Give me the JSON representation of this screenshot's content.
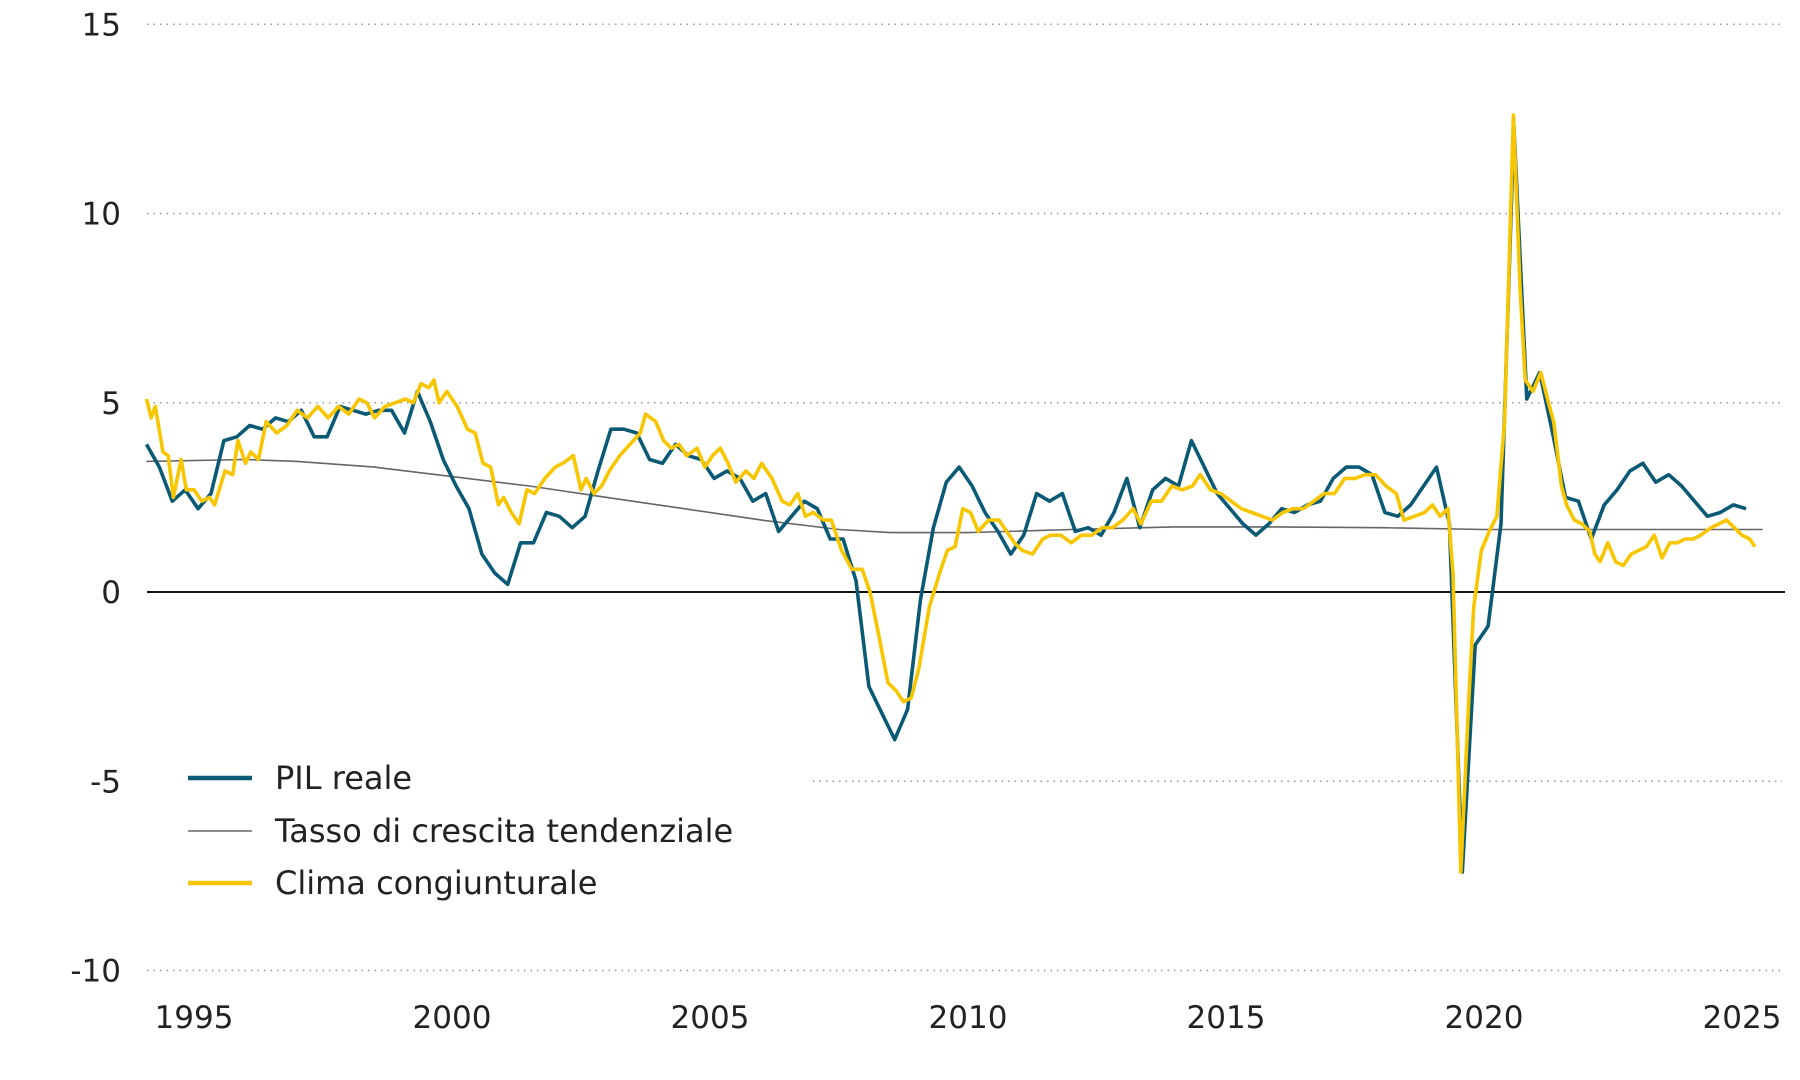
{
  "chart_data": {
    "type": "line",
    "title": "",
    "xlabel": "",
    "ylabel": "",
    "xlim": [
      1994.08,
      2025.6
    ],
    "ylim": [
      -10,
      15
    ],
    "y_ticks": [
      15,
      10,
      5,
      0,
      -5,
      -10
    ],
    "y_tick_labels": [
      "15",
      "10",
      "5",
      "0",
      "-5",
      "-10"
    ],
    "x_ticks": [
      1995,
      2000,
      2005,
      2010,
      2015,
      2020,
      2025
    ],
    "x_tick_labels": [
      "1995",
      "2000",
      "2005",
      "2010",
      "2015",
      "2020",
      "2025"
    ],
    "grid": "horizontal dotted",
    "legend_placement": "bottom-left",
    "series": [
      {
        "name": "PIL reale",
        "color": "#0b5a75",
        "x_start": 1994.08,
        "x_step": 0.25,
        "values": [
          3.9,
          3.3,
          2.4,
          2.7,
          2.2,
          2.6,
          4.0,
          4.1,
          4.4,
          4.3,
          4.6,
          4.5,
          4.8,
          4.1,
          4.1,
          4.9,
          4.8,
          4.7,
          4.8,
          4.8,
          4.2,
          5.3,
          4.5,
          3.5,
          2.8,
          2.2,
          1.0,
          0.5,
          0.2,
          1.3,
          1.3,
          2.1,
          2.0,
          1.7,
          2.0,
          3.2,
          4.3,
          4.3,
          4.2,
          3.5,
          3.4,
          3.9,
          3.6,
          3.5,
          3.0,
          3.2,
          3.0,
          2.4,
          2.6,
          1.6,
          2.0,
          2.4,
          2.2,
          1.4,
          1.4,
          0.3,
          -2.5,
          -3.2,
          -3.9,
          -3.1,
          -0.2,
          1.7,
          2.9,
          3.3,
          2.8,
          2.1,
          1.6,
          1.0,
          1.5,
          2.6,
          2.4,
          2.6,
          1.6,
          1.7,
          1.5,
          2.1,
          3.0,
          1.7,
          2.7,
          3.0,
          2.8,
          4.0,
          3.3,
          2.6,
          2.2,
          1.8,
          1.5,
          1.8,
          2.2,
          2.1,
          2.3,
          2.4,
          3.0,
          3.3,
          3.3,
          3.1,
          2.1,
          2.0,
          2.3,
          2.8,
          3.3,
          1.8,
          -7.4,
          -1.4,
          -0.9,
          1.8,
          12.3,
          5.1,
          5.8,
          4.2,
          2.5,
          2.4,
          1.4,
          2.3,
          2.7,
          3.2,
          3.4,
          2.9,
          3.1,
          2.8,
          2.4,
          2.0,
          2.1,
          2.3,
          2.2
        ]
      },
      {
        "name": "Tasso di crescita tendenziale",
        "color": "#666666",
        "x": [
          1994.08,
          1996,
          1997,
          1998.5,
          2000,
          2001.5,
          2003,
          2004.5,
          2006,
          2007.5,
          2008.5,
          2010,
          2012,
          2014,
          2016,
          2018,
          2020,
          2025.4
        ],
        "values": [
          3.45,
          3.5,
          3.45,
          3.3,
          3.05,
          2.8,
          2.5,
          2.2,
          1.9,
          1.65,
          1.57,
          1.57,
          1.65,
          1.72,
          1.72,
          1.7,
          1.65,
          1.65
        ]
      },
      {
        "name": "Clima congiunturale",
        "color": "#f7c600",
        "x": [
          1994.08,
          1994.17,
          1994.25,
          1994.4,
          1994.5,
          1994.6,
          1994.75,
          1994.85,
          1995.0,
          1995.15,
          1995.3,
          1995.4,
          1995.6,
          1995.75,
          1995.85,
          1996.0,
          1996.1,
          1996.25,
          1996.4,
          1996.6,
          1996.8,
          1997.0,
          1997.2,
          1997.4,
          1997.6,
          1997.8,
          1998.0,
          1998.2,
          1998.35,
          1998.5,
          1998.7,
          1998.9,
          1999.1,
          1999.25,
          1999.4,
          1999.55,
          1999.65,
          1999.75,
          1999.9,
          2000.1,
          2000.3,
          2000.45,
          2000.6,
          2000.75,
          2000.9,
          2001.0,
          2001.15,
          2001.3,
          2001.45,
          2001.6,
          2001.8,
          2002.0,
          2002.15,
          2002.35,
          2002.5,
          2002.6,
          2002.75,
          2002.9,
          2003.05,
          2003.25,
          2003.45,
          2003.65,
          2003.75,
          2003.95,
          2004.1,
          2004.25,
          2004.4,
          2004.55,
          2004.75,
          2004.9,
          2005.05,
          2005.2,
          2005.35,
          2005.5,
          2005.7,
          2005.85,
          2006.0,
          2006.2,
          2006.4,
          2006.55,
          2006.7,
          2006.85,
          2007.0,
          2007.2,
          2007.35,
          2007.55,
          2007.75,
          2007.95,
          2008.1,
          2008.25,
          2008.45,
          2008.6,
          2008.75,
          2008.9,
          2009.05,
          2009.25,
          2009.45,
          2009.6,
          2009.75,
          2009.9,
          2010.05,
          2010.2,
          2010.4,
          2010.6,
          2010.75,
          2010.9,
          2011.05,
          2011.25,
          2011.45,
          2011.6,
          2011.8,
          2012.0,
          2012.2,
          2012.4,
          2012.6,
          2012.8,
          2013.0,
          2013.2,
          2013.35,
          2013.55,
          2013.75,
          2013.95,
          2014.15,
          2014.35,
          2014.5,
          2014.7,
          2014.9,
          2015.1,
          2015.3,
          2015.5,
          2015.7,
          2015.9,
          2016.1,
          2016.3,
          2016.5,
          2016.7,
          2016.9,
          2017.1,
          2017.3,
          2017.5,
          2017.7,
          2017.9,
          2018.1,
          2018.3,
          2018.45,
          2018.65,
          2018.85,
          2019.0,
          2019.15,
          2019.3,
          2019.4,
          2019.55,
          2019.7,
          2019.8,
          2019.95,
          2020.1,
          2020.25,
          2020.4,
          2020.57,
          2020.7,
          2020.8,
          2020.95,
          2021.1,
          2021.25,
          2021.35,
          2021.5,
          2021.6,
          2021.75,
          2021.9,
          2022.05,
          2022.15,
          2022.25,
          2022.4,
          2022.55,
          2022.7,
          2022.85,
          2023.0,
          2023.15,
          2023.3,
          2023.45,
          2023.6,
          2023.75,
          2023.9,
          2024.05,
          2024.2,
          2024.4,
          2024.55,
          2024.7,
          2024.85,
          2025.0,
          2025.15,
          2025.25
        ],
        "values": [
          5.1,
          4.6,
          4.9,
          3.7,
          3.6,
          2.5,
          3.5,
          2.7,
          2.7,
          2.4,
          2.5,
          2.3,
          3.2,
          3.1,
          4.0,
          3.4,
          3.7,
          3.5,
          4.5,
          4.2,
          4.4,
          4.8,
          4.6,
          4.9,
          4.6,
          4.9,
          4.7,
          5.1,
          5.0,
          4.6,
          4.9,
          5.0,
          5.1,
          5.0,
          5.5,
          5.4,
          5.6,
          5.0,
          5.3,
          4.9,
          4.3,
          4.2,
          3.4,
          3.3,
          2.3,
          2.5,
          2.1,
          1.8,
          2.7,
          2.6,
          3.0,
          3.3,
          3.4,
          3.6,
          2.7,
          3.0,
          2.6,
          2.8,
          3.2,
          3.6,
          3.9,
          4.2,
          4.7,
          4.5,
          4.0,
          3.8,
          3.9,
          3.6,
          3.8,
          3.3,
          3.6,
          3.8,
          3.4,
          2.9,
          3.2,
          3.0,
          3.4,
          3.0,
          2.4,
          2.3,
          2.6,
          2.0,
          2.1,
          1.9,
          1.9,
          1.1,
          0.6,
          0.6,
          0.0,
          -1.0,
          -2.4,
          -2.6,
          -2.9,
          -2.8,
          -2.0,
          -0.4,
          0.5,
          1.1,
          1.2,
          2.2,
          2.1,
          1.6,
          1.9,
          1.9,
          1.6,
          1.3,
          1.1,
          1.0,
          1.4,
          1.5,
          1.5,
          1.3,
          1.5,
          1.5,
          1.7,
          1.7,
          1.9,
          2.2,
          1.8,
          2.4,
          2.4,
          2.8,
          2.7,
          2.8,
          3.1,
          2.7,
          2.6,
          2.4,
          2.2,
          2.1,
          2.0,
          1.9,
          2.1,
          2.2,
          2.2,
          2.4,
          2.6,
          2.6,
          3.0,
          3.0,
          3.1,
          3.1,
          2.8,
          2.6,
          1.9,
          2.0,
          2.1,
          2.3,
          2.0,
          2.2,
          0.5,
          -7.4,
          -3.0,
          -0.4,
          1.1,
          1.6,
          2.0,
          4.5,
          12.6,
          8.0,
          5.6,
          5.3,
          5.8,
          5.0,
          4.5,
          2.8,
          2.3,
          1.9,
          1.8,
          1.6,
          1.0,
          0.8,
          1.3,
          0.8,
          0.7,
          1.0,
          1.1,
          1.2,
          1.5,
          0.9,
          1.3,
          1.3,
          1.4,
          1.4,
          1.5,
          1.7,
          1.8,
          1.9,
          1.7,
          1.5,
          1.4,
          1.2
        ]
      }
    ]
  }
}
